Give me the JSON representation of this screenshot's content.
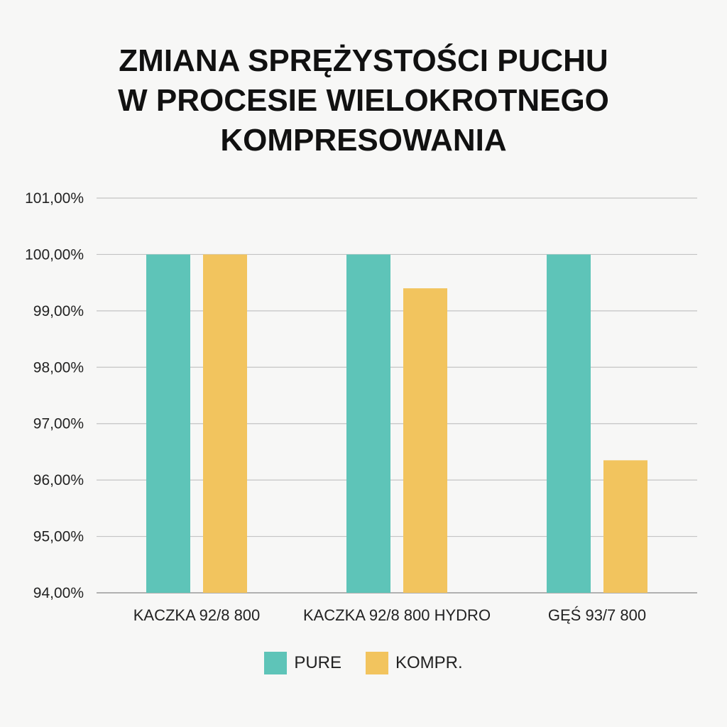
{
  "chart_data": {
    "type": "bar",
    "title_lines": [
      "ZMIANA SPRĘŻYSTOŚCI PUCHU",
      "W PROCESIE WIELOKROTNEGO",
      "KOMPRESOWANIA"
    ],
    "categories": [
      "KACZKA 92/8 800",
      "KACZKA 92/8 800 HYDRO",
      "GĘŚ 93/7 800"
    ],
    "series": [
      {
        "name": "PURE",
        "color": "#5ec4b8",
        "values": [
          100.0,
          100.0,
          100.0
        ]
      },
      {
        "name": "KOMPR.",
        "color": "#f2c45e",
        "values": [
          100.0,
          99.4,
          96.35
        ]
      }
    ],
    "ylim": [
      94.0,
      101.0
    ],
    "yticks": [
      "94,00%",
      "95,00%",
      "96,00%",
      "97,00%",
      "98,00%",
      "99,00%",
      "100,00%",
      "101,00%"
    ],
    "xlabel": "",
    "ylabel": "",
    "grid": true,
    "legend_position": "bottom"
  }
}
